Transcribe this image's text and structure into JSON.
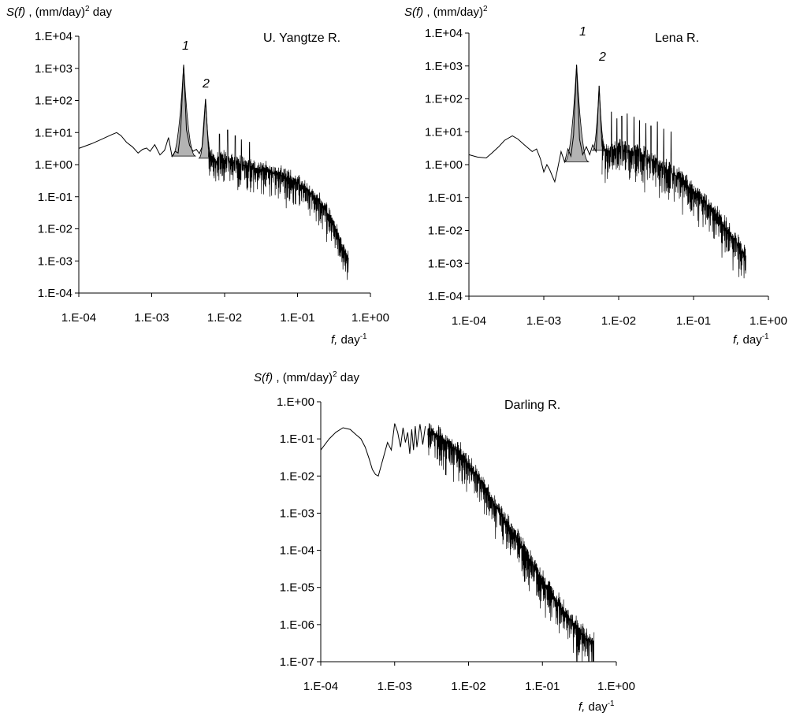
{
  "chart_data": [
    {
      "type": "line",
      "title": "U. Yangtze R.",
      "ylabel_symbol": "S(f)",
      "ylabel_sep": " ,  ",
      "ylabel_unit_pre": "(mm/day)",
      "ylabel_unit_exp": "2",
      "ylabel_unit_post": " day",
      "xlabel_symbol": "f,",
      "xlabel_unit_pre": " day",
      "xlabel_unit_exp": "-1",
      "x_scale": "log",
      "y_scale": "log",
      "xlim": [
        0.0001,
        1
      ],
      "ylim": [
        0.0001,
        10000
      ],
      "x_ticks": [
        "1.E-04",
        "1.E-03",
        "1.E-02",
        "1.E-01",
        "1.E+00"
      ],
      "y_ticks": [
        "1.E+04",
        "1.E+03",
        "1.E+02",
        "1.E+01",
        "1.E+00",
        "1.E-01",
        "1.E-02",
        "1.E-03",
        "1.E-04"
      ],
      "peak_labels": [
        "1",
        "2"
      ],
      "peaks": [
        {
          "label": "1",
          "f": 0.00274,
          "S": 1300
        },
        {
          "label": "2",
          "f": 0.00548,
          "S": 110
        }
      ],
      "curve": [
        [
          0.0001,
          3.2
        ],
        [
          0.00015,
          4.5
        ],
        [
          0.0002,
          6.0
        ],
        [
          0.00028,
          8.5
        ],
        [
          0.00033,
          10
        ],
        [
          0.00038,
          8.0
        ],
        [
          0.00045,
          5.0
        ],
        [
          0.00055,
          3.5
        ],
        [
          0.00065,
          2.3
        ],
        [
          0.00075,
          3.0
        ],
        [
          0.00085,
          3.3
        ],
        [
          0.00095,
          2.6
        ],
        [
          0.0011,
          4.2
        ],
        [
          0.0013,
          2.0
        ],
        [
          0.0015,
          2.8
        ],
        [
          0.0017,
          7.0
        ],
        [
          0.0019,
          1.8
        ],
        [
          0.0021,
          2.6
        ],
        [
          0.0023,
          2.3
        ],
        [
          0.0025,
          12
        ],
        [
          0.00274,
          1300
        ],
        [
          0.003,
          12
        ],
        [
          0.0033,
          4.0
        ],
        [
          0.0037,
          2.6
        ],
        [
          0.0041,
          3.0
        ],
        [
          0.0045,
          2.2
        ],
        [
          0.0049,
          3.5
        ],
        [
          0.00548,
          110
        ],
        [
          0.006,
          3.0
        ],
        [
          0.0065,
          1.4
        ],
        [
          0.007,
          1.8
        ],
        [
          0.0075,
          1.2
        ],
        [
          0.008,
          1.5
        ],
        [
          0.01,
          1.4
        ],
        [
          0.02,
          0.9
        ],
        [
          0.04,
          0.6
        ],
        [
          0.07,
          0.4
        ],
        [
          0.1,
          0.27
        ],
        [
          0.15,
          0.14
        ],
        [
          0.2,
          0.07
        ],
        [
          0.25,
          0.035
        ],
        [
          0.3,
          0.015
        ],
        [
          0.35,
          0.007
        ],
        [
          0.4,
          0.003
        ],
        [
          0.45,
          0.0017
        ],
        [
          0.5,
          0.0012
        ]
      ],
      "noise": {
        "from": 0.006,
        "to": 0.5,
        "spread_decades": 1.0,
        "spikes": [
          [
            0.0085,
            9
          ],
          [
            0.011,
            12
          ],
          [
            0.014,
            8
          ],
          [
            0.017,
            6
          ],
          [
            0.022,
            5
          ]
        ]
      }
    },
    {
      "type": "line",
      "title": "Lena R.",
      "ylabel_symbol": "S(f)",
      "ylabel_sep": " ,  ",
      "ylabel_unit_pre": "(mm/day)",
      "ylabel_unit_exp": "2",
      "ylabel_unit_post": "",
      "xlabel_symbol": "f,",
      "xlabel_unit_pre": " day",
      "xlabel_unit_exp": "-1",
      "x_scale": "log",
      "y_scale": "log",
      "xlim": [
        0.0001,
        1
      ],
      "ylim": [
        0.0001,
        10000
      ],
      "x_ticks": [
        "1.E-04",
        "1.E-03",
        "1.E-02",
        "1.E-01",
        "1.E+00"
      ],
      "y_ticks": [
        "1.E+04",
        "1.E+03",
        "1.E+02",
        "1.E+01",
        "1.E+00",
        "1.E-01",
        "1.E-02",
        "1.E-03",
        "1.E-04"
      ],
      "peak_labels": [
        "1",
        "2"
      ],
      "peaks": [
        {
          "label": "1",
          "f": 0.00274,
          "S": 1100
        },
        {
          "label": "2",
          "f": 0.00548,
          "S": 250
        }
      ],
      "curve": [
        [
          0.0001,
          2.0
        ],
        [
          0.00013,
          1.7
        ],
        [
          0.00017,
          1.6
        ],
        [
          0.0002,
          2.2
        ],
        [
          0.00025,
          3.5
        ],
        [
          0.0003,
          5.5
        ],
        [
          0.00038,
          7.5
        ],
        [
          0.00045,
          6.0
        ],
        [
          0.00055,
          4.0
        ],
        [
          0.0007,
          2.5
        ],
        [
          0.0008,
          3.0
        ],
        [
          0.0009,
          1.5
        ],
        [
          0.001,
          0.6
        ],
        [
          0.0011,
          1.0
        ],
        [
          0.0012,
          0.7
        ],
        [
          0.0013,
          0.45
        ],
        [
          0.0014,
          0.3
        ],
        [
          0.0015,
          0.6
        ],
        [
          0.0017,
          2.5
        ],
        [
          0.0019,
          1.2
        ],
        [
          0.0021,
          3.0
        ],
        [
          0.0023,
          1.8
        ],
        [
          0.0025,
          8
        ],
        [
          0.00274,
          1100
        ],
        [
          0.003,
          6
        ],
        [
          0.0033,
          2.0
        ],
        [
          0.0037,
          3.5
        ],
        [
          0.0041,
          2.0
        ],
        [
          0.0045,
          4.0
        ],
        [
          0.005,
          2.5
        ],
        [
          0.00548,
          250
        ],
        [
          0.006,
          3.5
        ],
        [
          0.007,
          2.5
        ],
        [
          0.01,
          3.0
        ],
        [
          0.02,
          2.0
        ],
        [
          0.04,
          0.8
        ],
        [
          0.07,
          0.35
        ],
        [
          0.1,
          0.15
        ],
        [
          0.15,
          0.06
        ],
        [
          0.2,
          0.03
        ],
        [
          0.25,
          0.015
        ],
        [
          0.3,
          0.008
        ],
        [
          0.4,
          0.0035
        ],
        [
          0.5,
          0.0015
        ]
      ],
      "noise": {
        "from": 0.006,
        "to": 0.5,
        "spread_decades": 1.1,
        "spikes": [
          [
            0.008,
            40
          ],
          [
            0.0095,
            25
          ],
          [
            0.011,
            30
          ],
          [
            0.013,
            35
          ],
          [
            0.016,
            28
          ],
          [
            0.019,
            22
          ],
          [
            0.023,
            18
          ],
          [
            0.027,
            15
          ],
          [
            0.033,
            20
          ],
          [
            0.04,
            12
          ],
          [
            0.05,
            10
          ]
        ]
      }
    },
    {
      "type": "line",
      "title": "Darling R.",
      "ylabel_symbol": "S(f)",
      "ylabel_sep": " ,  ",
      "ylabel_unit_pre": "(mm/day)",
      "ylabel_unit_exp": "2",
      "ylabel_unit_post": " day",
      "xlabel_symbol": "f,",
      "xlabel_unit_pre": " day",
      "xlabel_unit_exp": "-1",
      "x_scale": "log",
      "y_scale": "log",
      "xlim": [
        0.0001,
        1
      ],
      "ylim": [
        1e-07,
        1
      ],
      "x_ticks": [
        "1.E-04",
        "1.E-03",
        "1.E-02",
        "1.E-01",
        "1.E+00"
      ],
      "y_ticks": [
        "1.E+00",
        "1.E-01",
        "1.E-02",
        "1.E-03",
        "1.E-04",
        "1.E-05",
        "1.E-06",
        "1.E-07"
      ],
      "peak_labels": [],
      "peaks": [],
      "curve": [
        [
          0.0001,
          0.05
        ],
        [
          0.00013,
          0.1
        ],
        [
          0.00016,
          0.15
        ],
        [
          0.0002,
          0.2
        ],
        [
          0.00025,
          0.18
        ],
        [
          0.0003,
          0.13
        ],
        [
          0.00035,
          0.1
        ],
        [
          0.0004,
          0.06
        ],
        [
          0.00045,
          0.03
        ],
        [
          0.0005,
          0.015
        ],
        [
          0.00055,
          0.011
        ],
        [
          0.0006,
          0.01
        ],
        [
          0.0007,
          0.03
        ],
        [
          0.0008,
          0.08
        ],
        [
          0.0009,
          0.05
        ],
        [
          0.001,
          0.26
        ],
        [
          0.0011,
          0.15
        ],
        [
          0.0012,
          0.06
        ],
        [
          0.0013,
          0.2
        ],
        [
          0.0014,
          0.08
        ],
        [
          0.0015,
          0.15
        ],
        [
          0.0016,
          0.04
        ],
        [
          0.0017,
          0.18
        ],
        [
          0.0018,
          0.05
        ],
        [
          0.0019,
          0.22
        ],
        [
          0.002,
          0.06
        ],
        [
          0.0022,
          0.25
        ],
        [
          0.0024,
          0.07
        ],
        [
          0.0026,
          0.22
        ],
        [
          0.003,
          0.15
        ],
        [
          0.004,
          0.12
        ],
        [
          0.005,
          0.08
        ],
        [
          0.007,
          0.05
        ],
        [
          0.01,
          0.02
        ],
        [
          0.015,
          0.007
        ],
        [
          0.02,
          0.0025
        ],
        [
          0.03,
          0.0007
        ],
        [
          0.05,
          0.00015
        ],
        [
          0.07,
          5e-05
        ],
        [
          0.1,
          1.5e-05
        ],
        [
          0.15,
          5e-06
        ],
        [
          0.2,
          2e-06
        ],
        [
          0.3,
          8e-07
        ],
        [
          0.4,
          4e-07
        ],
        [
          0.5,
          3e-07
        ]
      ],
      "noise": {
        "from": 0.0028,
        "to": 0.5,
        "spread_decades": 1.0,
        "spikes": []
      }
    }
  ]
}
